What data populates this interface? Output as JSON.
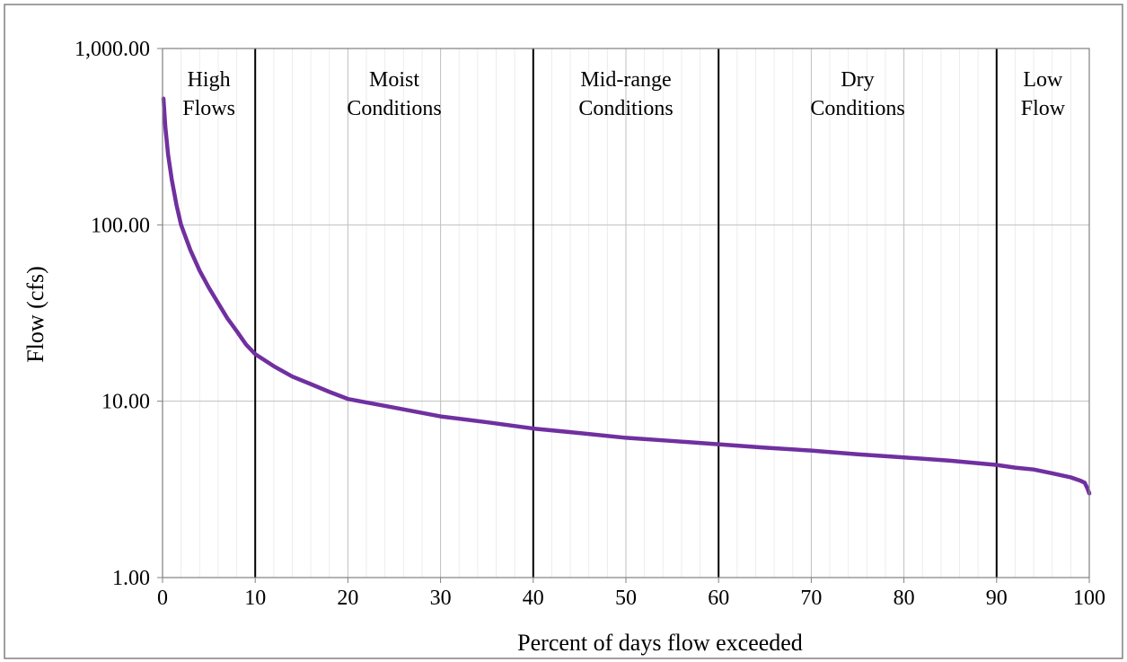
{
  "chart_data": {
    "type": "line",
    "title": "",
    "xlabel": "Percent of days flow exceeded",
    "ylabel": "Flow (cfs)",
    "xlim": [
      0,
      100
    ],
    "ylim": [
      1,
      1000
    ],
    "y_scale": "log",
    "grid": true,
    "x_ticks": [
      0,
      10,
      20,
      30,
      40,
      50,
      60,
      70,
      80,
      90,
      100
    ],
    "x_tick_labels": [
      "0",
      "10",
      "20",
      "30",
      "40",
      "50",
      "60",
      "70",
      "80",
      "90",
      "100"
    ],
    "y_ticks": [
      1,
      10,
      100,
      1000
    ],
    "y_tick_labels": [
      "1.00",
      "10.00",
      "100.00",
      "1,000.00"
    ],
    "zone_boundaries": [
      10,
      40,
      60,
      90
    ],
    "zones": [
      {
        "lines": [
          "High",
          "Flows"
        ],
        "center": 5
      },
      {
        "lines": [
          "Moist",
          "Conditions"
        ],
        "center": 25
      },
      {
        "lines": [
          "Mid-range",
          "Conditions"
        ],
        "center": 50
      },
      {
        "lines": [
          "Dry",
          "Conditions"
        ],
        "center": 75
      },
      {
        "lines": [
          "Low",
          "Flow"
        ],
        "center": 95
      }
    ],
    "series": [
      {
        "color": "#7030A0",
        "x": [
          0.1,
          0.3,
          0.6,
          1,
          1.5,
          2,
          3,
          4,
          5,
          6,
          7,
          8,
          9,
          10,
          12,
          14,
          16,
          18,
          20,
          25,
          30,
          35,
          40,
          45,
          50,
          55,
          60,
          65,
          70,
          75,
          80,
          85,
          90,
          92,
          94,
          96,
          97,
          98,
          99,
          99.5,
          99.8,
          100
        ],
        "y": [
          520,
          360,
          250,
          180,
          130,
          100,
          72,
          55,
          44,
          36,
          29.5,
          25,
          21,
          18.5,
          15.8,
          13.8,
          12.5,
          11.3,
          10.3,
          9.2,
          8.2,
          7.6,
          7.0,
          6.6,
          6.2,
          5.95,
          5.7,
          5.45,
          5.25,
          5.0,
          4.8,
          4.6,
          4.35,
          4.2,
          4.1,
          3.9,
          3.8,
          3.7,
          3.55,
          3.45,
          3.2,
          3.0
        ]
      }
    ]
  }
}
